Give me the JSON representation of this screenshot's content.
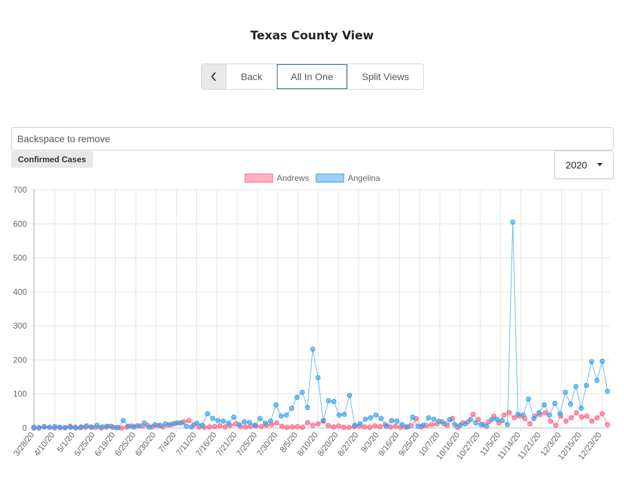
{
  "page": {
    "title": "Texas County View"
  },
  "nav": {
    "back_label": "Back",
    "all_in_one_label": "All In One",
    "split_views_label": "Split Views",
    "back_icon": "chevron-left-icon"
  },
  "search": {
    "placeholder": "Backspace to remove"
  },
  "tag": {
    "label": "Confirmed Cases"
  },
  "year_select": {
    "value": "2020"
  },
  "chart_data": {
    "type": "line",
    "title": "",
    "xlabel": "",
    "ylabel": "",
    "ylim": [
      0,
      700
    ],
    "yticks": [
      0,
      100,
      200,
      300,
      400,
      500,
      600,
      700
    ],
    "grid": true,
    "legend_position": "top-center",
    "x_tick_labels": [
      "3/28/20",
      "4/10/20",
      "5/1/20",
      "5/25/20",
      "6/19/20",
      "6/25/20",
      "6/30/20",
      "7/4/20",
      "7/11/20",
      "7/16/20",
      "7/21/20",
      "7/25/20",
      "7/30/20",
      "8/5/20",
      "8/10/20",
      "8/20/20",
      "8/27/20",
      "9/3/20",
      "9/16/20",
      "9/25/20",
      "10/7/20",
      "10/16/20",
      "10/27/20",
      "11/5/20",
      "11/14/20",
      "11/21/20",
      "12/3/20",
      "12/15/20",
      "12/23/20"
    ],
    "series": [
      {
        "name": "Andrews",
        "color": "#ff6384",
        "values": [
          0,
          0,
          4,
          2,
          0,
          2,
          1,
          5,
          2,
          1,
          2,
          3,
          2,
          0,
          3,
          5,
          1,
          0,
          3,
          6,
          6,
          5,
          8,
          4,
          7,
          3,
          9,
          12,
          15,
          18,
          22,
          10,
          3,
          2,
          3,
          4,
          6,
          3,
          8,
          12,
          4,
          3,
          5,
          6,
          4,
          8,
          10,
          15,
          5,
          2,
          3,
          4,
          2,
          16,
          8,
          12,
          20,
          7,
          3,
          6,
          2,
          2,
          4,
          5,
          3,
          2,
          6,
          4,
          10,
          3,
          5,
          2,
          3,
          6,
          28,
          3,
          7,
          10,
          12,
          18,
          8,
          28,
          2,
          15,
          18,
          40,
          25,
          10,
          18,
          35,
          15,
          38,
          45,
          30,
          35,
          28,
          12,
          35,
          40,
          45,
          20,
          8,
          35,
          20,
          30,
          45,
          32,
          35,
          20,
          30,
          42,
          10
        ]
      },
      {
        "name": "Angelina",
        "color": "#36a2eb",
        "values": [
          2,
          1,
          3,
          2,
          4,
          1,
          1,
          2,
          0,
          3,
          6,
          2,
          8,
          3,
          5,
          2,
          1,
          22,
          5,
          3,
          6,
          15,
          2,
          10,
          8,
          12,
          10,
          14,
          15,
          5,
          3,
          14,
          8,
          42,
          28,
          22,
          20,
          14,
          32,
          10,
          18,
          16,
          8,
          28,
          14,
          20,
          68,
          35,
          38,
          58,
          90,
          105,
          60,
          232,
          148,
          22,
          80,
          78,
          38,
          40,
          96,
          8,
          12,
          26,
          30,
          38,
          28,
          5,
          22,
          20,
          10,
          3,
          32,
          5,
          8,
          30,
          26,
          20,
          12,
          25,
          10,
          8,
          12,
          25,
          15,
          10,
          5,
          25,
          26,
          22,
          10,
          605,
          40,
          38,
          85,
          28,
          45,
          68,
          38,
          72,
          42,
          105,
          70,
          122,
          58,
          125,
          195,
          140,
          196,
          108
        ]
      }
    ]
  }
}
